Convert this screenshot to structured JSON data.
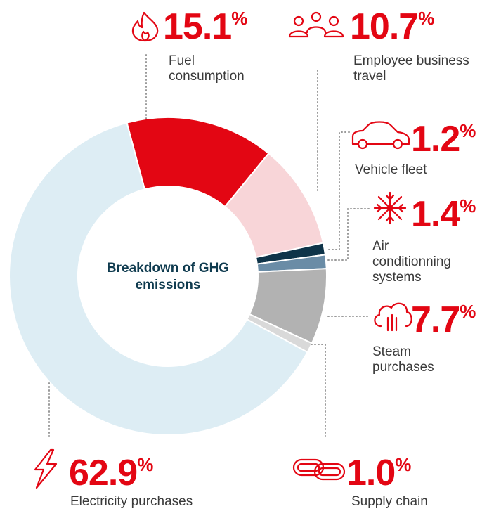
{
  "chart_data": {
    "type": "donut",
    "title": "Breakdown of GHG emissions",
    "categories": [
      "Fuel consumption",
      "Employee business travel",
      "Vehicle fleet",
      "Air conditionning systems",
      "Steam purchases",
      "Supply chain",
      "Electricity purchases"
    ],
    "values": [
      15.1,
      10.7,
      1.2,
      1.4,
      7.7,
      1.0,
      62.9
    ],
    "value_labels": [
      "15.1%",
      "10.7%",
      "1.2%",
      "1.4%",
      "7.7%",
      "1.0%",
      "62.9%"
    ],
    "colors": [
      "#e30613",
      "#f8d5d8",
      "#0f3449",
      "#6a8ca6",
      "#b2b2b2",
      "#d9d9d9",
      "#ddedf4"
    ]
  }
}
